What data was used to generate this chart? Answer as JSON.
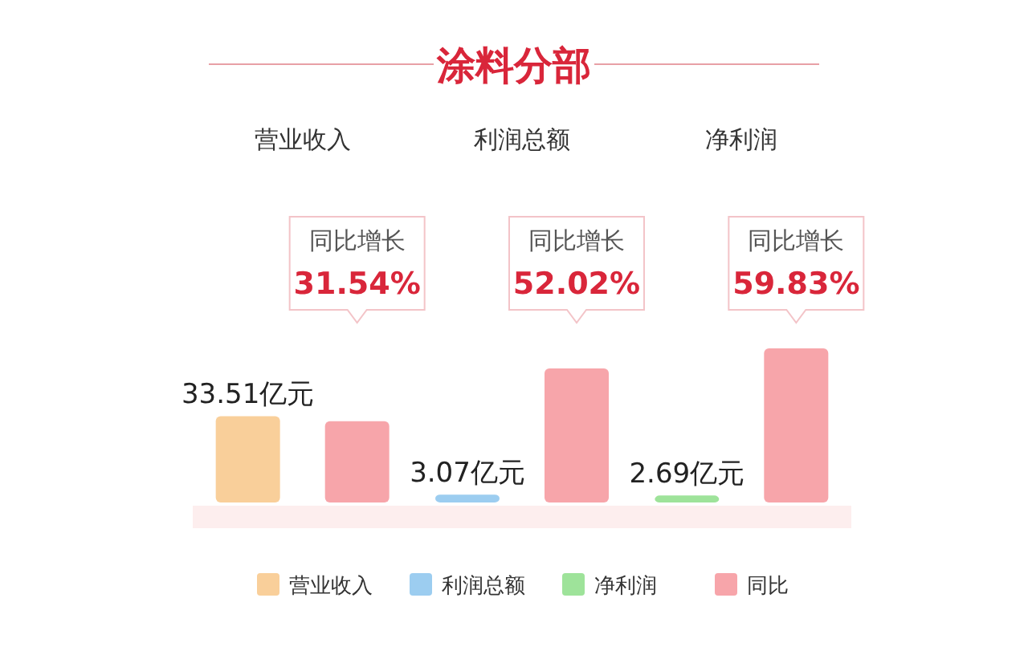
{
  "chart_data": {
    "type": "bar",
    "title": "涂料分部",
    "categories": [
      "营业收入",
      "利润总额",
      "净利润"
    ],
    "series": [
      {
        "name": "营业收入",
        "color": "#f9cf9a",
        "values": [
          33.51,
          null,
          null
        ],
        "value_labels": [
          "33.51亿元",
          null,
          null
        ]
      },
      {
        "name": "利润总额",
        "color": "#9ccdf0",
        "values": [
          null,
          3.07,
          null
        ],
        "value_labels": [
          null,
          "3.07亿元",
          null
        ]
      },
      {
        "name": "净利润",
        "color": "#9ee39a",
        "values": [
          null,
          null,
          2.69
        ],
        "value_labels": [
          null,
          null,
          "2.69亿元"
        ]
      },
      {
        "name": "同比",
        "color": "#f7a5aa",
        "values": [
          31.54,
          52.02,
          59.83
        ],
        "value_labels": [
          "31.54%",
          "52.02%",
          "59.83%"
        ]
      }
    ],
    "annotations": [
      "同比增长",
      "同比增长",
      "同比增长"
    ],
    "legend": "bottom"
  }
}
